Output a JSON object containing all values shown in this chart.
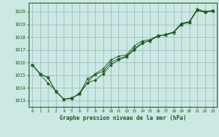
{
  "bg_color": "#cce8e4",
  "grid_color": "#99bbbb",
  "line_color": "#1a5c1a",
  "spine_color": "#1a5c1a",
  "title": "Graphe pression niveau de la mer (hPa)",
  "xlim": [
    -0.5,
    23.5
  ],
  "ylim": [
    1012.5,
    1020.7
  ],
  "yticks": [
    1013,
    1014,
    1015,
    1016,
    1017,
    1018,
    1019,
    1020
  ],
  "xticks": [
    0,
    1,
    2,
    3,
    4,
    5,
    6,
    7,
    8,
    9,
    10,
    11,
    12,
    13,
    14,
    15,
    16,
    17,
    18,
    19,
    20,
    21,
    22,
    23
  ],
  "series": [
    [
      1015.8,
      1015.1,
      1014.8,
      1013.7,
      1013.1,
      1013.2,
      1013.5,
      1014.4,
      1015.1,
      1015.5,
      1016.2,
      1016.5,
      1016.6,
      1017.3,
      1017.7,
      1017.8,
      1018.1,
      1018.2,
      1018.4,
      1019.1,
      1019.2,
      1020.2,
      1020.0,
      1020.1
    ],
    [
      1015.8,
      1015.1,
      1014.8,
      1013.7,
      1013.1,
      1013.2,
      1013.5,
      1014.7,
      1015.05,
      1015.3,
      1016.0,
      1016.3,
      1016.5,
      1017.1,
      1017.55,
      1017.7,
      1018.1,
      1018.15,
      1018.35,
      1019.0,
      1019.2,
      1020.15,
      1020.0,
      1020.05
    ],
    [
      1015.8,
      1015.05,
      1014.35,
      1013.75,
      1013.1,
      1013.15,
      1013.6,
      1014.4,
      1014.6,
      1015.1,
      1015.8,
      1016.2,
      1016.45,
      1017.0,
      1017.5,
      1017.75,
      1018.05,
      1018.2,
      1018.4,
      1019.0,
      1019.15,
      1020.1,
      1019.95,
      1020.05
    ]
  ]
}
